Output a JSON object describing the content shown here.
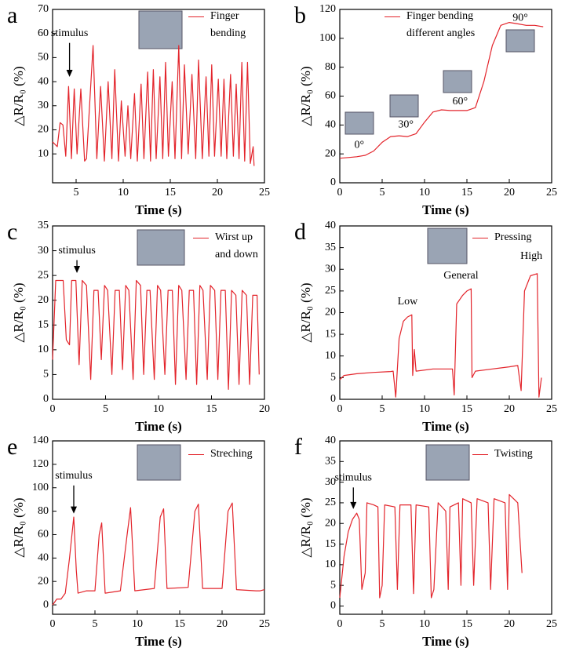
{
  "chart_data": [
    {
      "type": "line",
      "label": "a",
      "xlabel": "Time (s)",
      "ylabel": "△R/R₀ (%)",
      "xlim": [
        2.5,
        25
      ],
      "ylim": [
        -2,
        70
      ],
      "xticks": [
        5,
        10,
        15,
        20,
        25
      ],
      "yticks": [
        10,
        20,
        30,
        40,
        50,
        60,
        70
      ],
      "annotations": [
        "stimulus"
      ],
      "x": [
        2.5,
        3.0,
        3.3,
        3.6,
        3.9,
        4.2,
        4.5,
        4.8,
        5.1,
        5.5,
        5.9,
        6.1,
        6.8,
        7.2,
        7.6,
        8.0,
        8.4,
        8.8,
        9.1,
        9.5,
        9.8,
        10.2,
        10.5,
        10.8,
        11.2,
        11.5,
        11.9,
        12.2,
        12.6,
        12.9,
        13.2,
        13.5,
        13.9,
        14.2,
        14.5,
        14.8,
        15.2,
        15.5,
        15.9,
        16.2,
        16.5,
        16.9,
        17.3,
        17.7,
        18.0,
        18.4,
        18.8,
        19.1,
        19.4,
        19.7,
        20.1,
        20.4,
        20.7,
        21.0,
        21.4,
        21.7,
        22.0,
        22.3,
        22.6,
        22.9,
        23.2,
        23.5,
        23.8,
        23.9
      ],
      "series": [
        {
          "name": "Finger bending",
          "color": "#e3242b",
          "values": [
            15,
            13,
            23,
            22,
            9,
            38,
            8,
            37,
            10,
            37,
            7,
            8,
            55,
            8,
            38,
            7,
            40,
            8,
            45,
            7,
            32,
            9,
            30,
            8,
            35,
            7,
            39,
            8,
            44,
            7,
            45,
            8,
            42,
            8,
            48,
            9,
            40,
            8,
            55,
            8,
            47,
            10,
            43,
            8,
            49,
            8,
            42,
            9,
            47,
            9,
            41,
            9,
            41,
            8,
            43,
            9,
            39,
            8,
            48,
            7,
            48,
            6,
            13,
            5
          ]
        }
      ]
    },
    {
      "type": "line",
      "label": "b",
      "xlabel": "Time (s)",
      "ylabel": "△R/R₀ (%)",
      "xlim": [
        0,
        25
      ],
      "ylim": [
        0,
        120
      ],
      "xticks": [
        0,
        5,
        10,
        15,
        20,
        25
      ],
      "yticks": [
        0,
        20,
        40,
        60,
        80,
        100,
        120
      ],
      "annotations": [
        "0°",
        "30°",
        "60°",
        "90°"
      ],
      "x": [
        0,
        1,
        2,
        3,
        4,
        5,
        6,
        7,
        8,
        9,
        10,
        11,
        12,
        13,
        14,
        15,
        16,
        17,
        18,
        19,
        20,
        21,
        22,
        23,
        24
      ],
      "series": [
        {
          "name": "Finger bending different angles",
          "color": "#e3242b",
          "values": [
            17,
            17.5,
            18,
            19,
            22,
            28,
            32,
            32.5,
            32,
            34,
            42,
            49,
            50.5,
            50,
            50,
            50,
            52,
            70,
            95,
            109,
            111,
            110,
            109,
            109,
            108
          ]
        }
      ]
    },
    {
      "type": "line",
      "label": "c",
      "xlabel": "Time (s)",
      "ylabel": "△R/R₀ (%)",
      "xlim": [
        0,
        20
      ],
      "ylim": [
        0,
        35
      ],
      "xticks": [
        0,
        5,
        10,
        15,
        20
      ],
      "yticks": [
        0,
        5,
        10,
        15,
        20,
        25,
        30,
        35
      ],
      "annotations": [
        "stimulus"
      ],
      "x": [
        0,
        0.3,
        1.0,
        1.3,
        1.6,
        1.8,
        2.2,
        2.5,
        2.8,
        3.2,
        3.6,
        3.9,
        4.3,
        4.6,
        4.9,
        5.2,
        5.6,
        5.9,
        6.3,
        6.6,
        6.9,
        7.2,
        7.6,
        7.9,
        8.3,
        8.6,
        8.9,
        9.2,
        9.6,
        9.9,
        10.2,
        10.6,
        10.9,
        11.3,
        11.6,
        11.9,
        12.2,
        12.6,
        12.9,
        13.3,
        13.6,
        13.9,
        14.2,
        14.6,
        14.9,
        15.3,
        15.6,
        15.9,
        16.3,
        16.6,
        16.9,
        17.3,
        17.6,
        17.9,
        18.3,
        18.6,
        18.9,
        19.3,
        19.5
      ],
      "series": [
        {
          "name": "Wirst up and down",
          "color": "#e3242b",
          "values": [
            8,
            24,
            24,
            12,
            11,
            24,
            24,
            7,
            24,
            23,
            4,
            22,
            22,
            8,
            23,
            22,
            5,
            22,
            22,
            6,
            23,
            22,
            4,
            24,
            23,
            5,
            22,
            22,
            4,
            23,
            22,
            5,
            22,
            22,
            3,
            23,
            22,
            4,
            22,
            22,
            3,
            23,
            22,
            4,
            23,
            22,
            4,
            22,
            22,
            2,
            22,
            21,
            3,
            22,
            21,
            3,
            21,
            21,
            5
          ]
        }
      ]
    },
    {
      "type": "line",
      "label": "d",
      "xlabel": "Time (s)",
      "ylabel": "△R/R₀ (%)",
      "xlim": [
        0,
        25
      ],
      "ylim": [
        0,
        40
      ],
      "xticks": [
        0,
        5,
        10,
        15,
        20,
        25
      ],
      "yticks": [
        0,
        5,
        10,
        15,
        20,
        25,
        30,
        35,
        40
      ],
      "annotations": [
        "Low",
        "General",
        "High"
      ],
      "x": [
        0,
        0.5,
        2,
        4,
        6,
        6.3,
        6.6,
        7,
        7.5,
        8,
        8.5,
        8.6,
        8.8,
        9,
        11,
        13,
        13.3,
        13.5,
        13.8,
        14.5,
        15,
        15.5,
        15.6,
        16,
        18,
        20,
        21,
        21.4,
        21.8,
        22.5,
        23.3,
        23.5,
        23.8
      ],
      "series": [
        {
          "name": "Pressing",
          "color": "#e3242b",
          "values": [
            4.5,
            5.5,
            5.9,
            6.2,
            6.4,
            6.5,
            0.5,
            14,
            18,
            19,
            19.5,
            5.5,
            11.5,
            6.5,
            7,
            7,
            7,
            1,
            22,
            24,
            25,
            25.5,
            5,
            6.5,
            7,
            7.5,
            7.8,
            2,
            25,
            28.5,
            29,
            0.5,
            5
          ]
        }
      ]
    },
    {
      "type": "line",
      "label": "e",
      "xlabel": "Time (s)",
      "ylabel": "△R/R₀ (%)",
      "xlim": [
        0,
        25
      ],
      "ylim": [
        -8,
        140
      ],
      "xticks": [
        0,
        5,
        10,
        15,
        20,
        25
      ],
      "yticks": [
        0,
        20,
        40,
        60,
        80,
        100,
        120,
        140
      ],
      "annotations": [
        "stimulus"
      ],
      "x": [
        0,
        0.5,
        1,
        1.5,
        2,
        2.5,
        2.8,
        3,
        4,
        5,
        5.5,
        5.8,
        6.2,
        8,
        8.8,
        9.2,
        9.7,
        12,
        12.7,
        13.1,
        13.5,
        16,
        16.8,
        17.2,
        17.7,
        20,
        20.7,
        21.2,
        21.7,
        24,
        24.5,
        25
      ],
      "series": [
        {
          "name": "Streching",
          "color": "#e3242b",
          "values": [
            0,
            5,
            5,
            10,
            40,
            75,
            30,
            10,
            12,
            12,
            60,
            70,
            10,
            12,
            60,
            83,
            12,
            14,
            75,
            82,
            14,
            15,
            80,
            86,
            14,
            14,
            80,
            87,
            13,
            12,
            12,
            13
          ]
        }
      ]
    },
    {
      "type": "line",
      "label": "f",
      "xlabel": "Time (s)",
      "ylabel": "△R/R₀ (%)",
      "xlim": [
        0,
        25
      ],
      "ylim": [
        -2,
        40
      ],
      "xticks": [
        0,
        5,
        10,
        15,
        20,
        25
      ],
      "yticks": [
        0,
        5,
        10,
        15,
        20,
        25,
        30,
        35,
        40
      ],
      "annotations": [
        "stimulus"
      ],
      "x": [
        0,
        0.5,
        1,
        1.5,
        2,
        2.3,
        2.6,
        3,
        3.2,
        4,
        4.5,
        4.7,
        5,
        5.3,
        6.5,
        6.8,
        7.1,
        8.4,
        8.7,
        9,
        10.5,
        10.8,
        11.1,
        11.6,
        12.5,
        12.8,
        13,
        14,
        14.3,
        14.5,
        15.5,
        15.8,
        16.2,
        17.5,
        17.8,
        18.2,
        19.5,
        19.8,
        20,
        21,
        21.5
      ],
      "series": [
        {
          "name": "Twisting",
          "color": "#e3242b",
          "values": [
            2,
            12,
            18,
            21,
            22.5,
            21,
            4,
            8,
            25,
            24.5,
            24,
            2,
            5,
            24.5,
            24,
            4,
            24.5,
            24.5,
            3,
            24.5,
            24,
            2,
            4,
            25,
            23,
            4,
            24,
            25,
            5,
            26,
            25,
            5,
            26,
            25,
            4,
            26,
            25,
            4,
            27,
            25,
            8
          ]
        }
      ]
    }
  ]
}
